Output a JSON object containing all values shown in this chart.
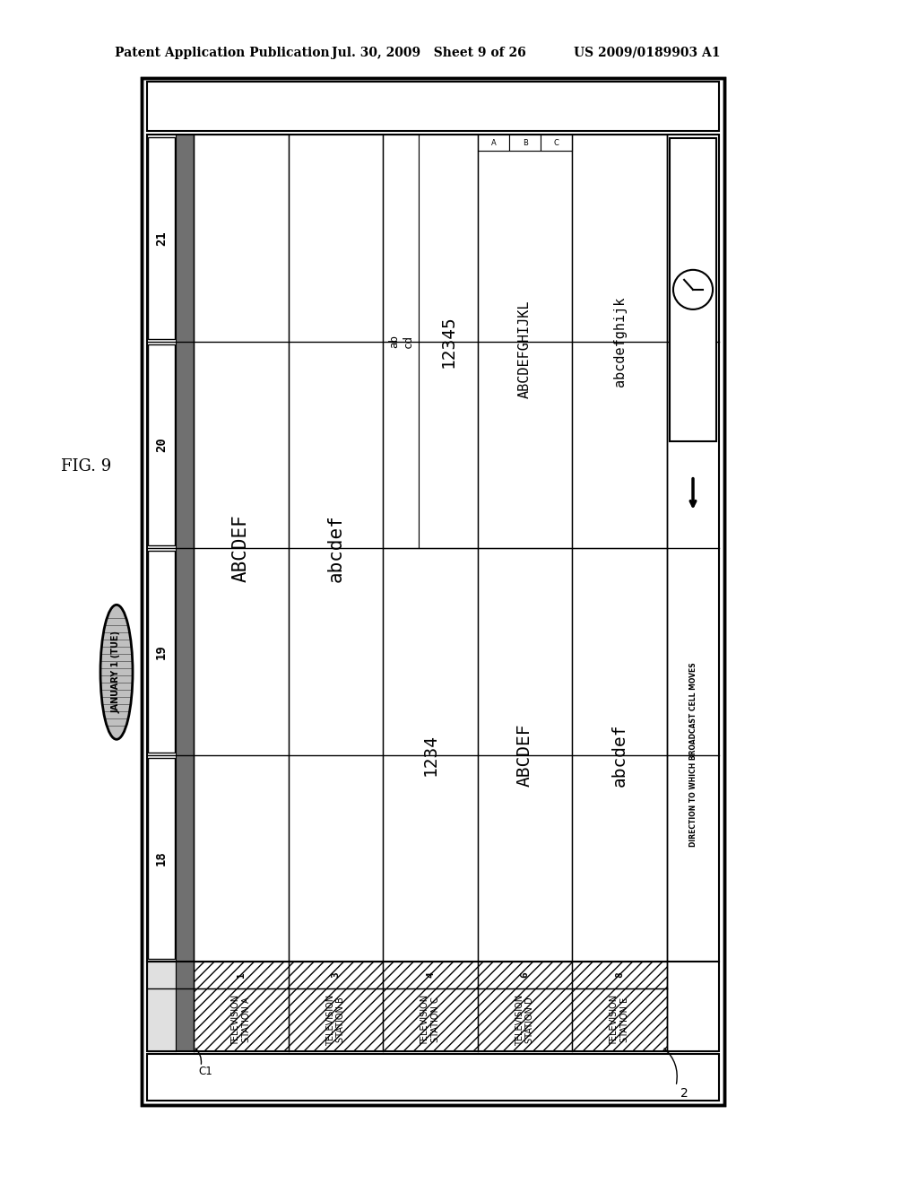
{
  "header_left": "Patent Application Publication",
  "header_mid": "Jul. 30, 2009   Sheet 9 of 26",
  "header_right": "US 2009/0189903 A1",
  "fig_label": "FIG. 9",
  "date_label": "JANUARY 1 (TUE)",
  "time_labels": [
    "18",
    "19",
    "20",
    "21"
  ],
  "stations": [
    "TELEVISION\nSTATION A",
    "TELEVISION\nSTATION B",
    "TELEVISION\nSTATION C",
    "TELEVISION\nSTATION D",
    "TELEVISION\nSTATION E"
  ],
  "ch_numbers": [
    "1",
    "3",
    "4",
    "6",
    "8"
  ],
  "direction_text": "DIRECTION TO WHICH BROADCAST CELL MOVES",
  "c1_label": "C1",
  "label_2": "2",
  "bg_color": "#ffffff"
}
